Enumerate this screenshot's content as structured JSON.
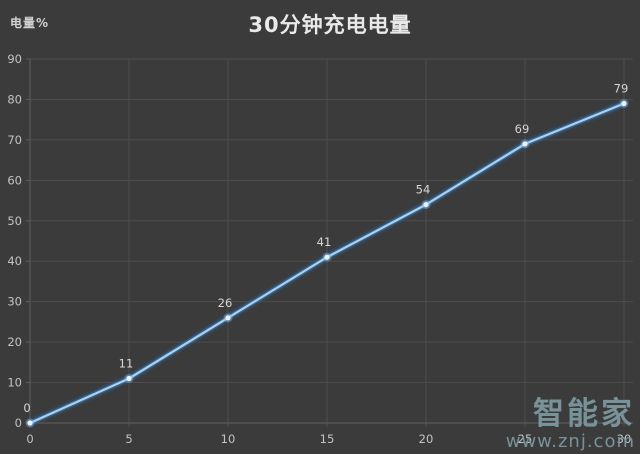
{
  "header": {
    "y_unit_label": "电量%",
    "title": "30分钟充电电量"
  },
  "chart_data": {
    "type": "line",
    "title": "30分钟充电电量",
    "ylabel": "电量%",
    "xlabel": "",
    "x": [
      0,
      5,
      10,
      15,
      20,
      25,
      30
    ],
    "values": [
      0,
      11,
      26,
      41,
      54,
      69,
      79
    ],
    "point_labels": [
      "0",
      "11",
      "26",
      "41",
      "54",
      "69",
      "79"
    ],
    "x_ticks": [
      "0",
      "5",
      "10",
      "15",
      "20",
      "25",
      "30"
    ],
    "y_ticks": [
      "0",
      "10",
      "20",
      "30",
      "40",
      "50",
      "60",
      "70",
      "80",
      "90"
    ],
    "xlim": [
      0,
      30
    ],
    "ylim": [
      0,
      90
    ],
    "grid": "on",
    "legend": "none",
    "colors": {
      "background": "#3b3b3b",
      "gridline": "#4c4c4c",
      "axis": "#5f5f5f",
      "tick_label": "#c3c3c3",
      "data_label": "#d6d6d6",
      "line_core": "#aad1ef",
      "line_glow": "#3f87c7",
      "line_glow_outer": "#2a5f93",
      "marker_fill": "#e8f3fb",
      "marker_halo": "#7fb6e3"
    }
  },
  "watermark": {
    "logo_text": "智能家",
    "url_text": "www.znj.com",
    "color": "#7e9aa2"
  }
}
